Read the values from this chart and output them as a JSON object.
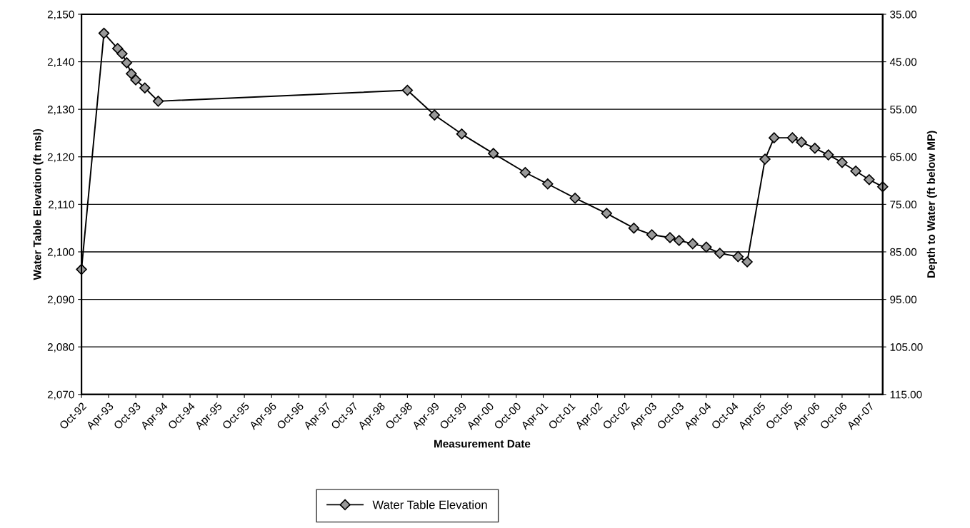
{
  "chart_data": {
    "type": "line",
    "xlabel": "Measurement Date",
    "ylabel": "Water Table Elevation (ft msl)",
    "y2label": "Depth to Water (ft below MP)",
    "x": [
      "1992-10",
      "1993-03",
      "1993-06",
      "1993-07",
      "1993-08",
      "1993-09",
      "1993-10",
      "1993-12",
      "1994-03",
      "1998-10",
      "1999-04",
      "1999-10",
      "2000-05",
      "2000-12",
      "2001-05",
      "2001-11",
      "2002-06",
      "2002-12",
      "2003-04",
      "2003-08",
      "2003-10",
      "2004-01",
      "2004-04",
      "2004-07",
      "2004-11",
      "2005-01",
      "2005-05",
      "2005-07",
      "2005-11",
      "2006-01",
      "2006-04",
      "2006-07",
      "2006-10",
      "2007-01",
      "2007-04",
      "2007-07"
    ],
    "series": [
      {
        "name": "Water Table Elevation",
        "color": "#000000",
        "values": [
          2096.3,
          2146.0,
          2142.8,
          2141.7,
          2139.8,
          2137.5,
          2136.2,
          2134.5,
          2131.7,
          2134.0,
          2128.8,
          2124.8,
          2120.7,
          2116.7,
          2114.3,
          2111.3,
          2108.1,
          2105.0,
          2103.6,
          2103.0,
          2102.4,
          2101.7,
          2101.0,
          2099.7,
          2099.0,
          2097.9,
          2119.5,
          2124.0,
          2124.0,
          2123.1,
          2121.8,
          2120.4,
          2118.8,
          2117.0,
          2115.2,
          2113.7
        ]
      }
    ],
    "marker": "diamond",
    "line_style": "solid",
    "grid": "y",
    "legend": "bottom",
    "xlim": [
      "1992-10",
      "2007-07"
    ],
    "xticks": [
      {
        "value": "1992-10",
        "label": "Oct-92"
      },
      {
        "value": "1993-04",
        "label": "Apr-93"
      },
      {
        "value": "1993-10",
        "label": "Oct-93"
      },
      {
        "value": "1994-04",
        "label": "Apr-94"
      },
      {
        "value": "1994-10",
        "label": "Oct-94"
      },
      {
        "value": "1995-04",
        "label": "Apr-95"
      },
      {
        "value": "1995-10",
        "label": "Oct-95"
      },
      {
        "value": "1996-04",
        "label": "Apr-96"
      },
      {
        "value": "1996-10",
        "label": "Oct-96"
      },
      {
        "value": "1997-04",
        "label": "Apr-97"
      },
      {
        "value": "1997-10",
        "label": "Oct-97"
      },
      {
        "value": "1998-04",
        "label": "Apr-98"
      },
      {
        "value": "1998-10",
        "label": "Oct-98"
      },
      {
        "value": "1999-04",
        "label": "Apr-99"
      },
      {
        "value": "1999-10",
        "label": "Oct-99"
      },
      {
        "value": "2000-04",
        "label": "Apr-00"
      },
      {
        "value": "2000-10",
        "label": "Oct-00"
      },
      {
        "value": "2001-04",
        "label": "Apr-01"
      },
      {
        "value": "2001-10",
        "label": "Oct-01"
      },
      {
        "value": "2002-04",
        "label": "Apr-02"
      },
      {
        "value": "2002-10",
        "label": "Oct-02"
      },
      {
        "value": "2003-04",
        "label": "Apr-03"
      },
      {
        "value": "2003-10",
        "label": "Oct-03"
      },
      {
        "value": "2004-04",
        "label": "Apr-04"
      },
      {
        "value": "2004-10",
        "label": "Oct-04"
      },
      {
        "value": "2005-04",
        "label": "Apr-05"
      },
      {
        "value": "2005-10",
        "label": "Oct-05"
      },
      {
        "value": "2006-04",
        "label": "Apr-06"
      },
      {
        "value": "2006-10",
        "label": "Oct-06"
      },
      {
        "value": "2007-04",
        "label": "Apr-07"
      }
    ],
    "ylim": [
      2070,
      2150
    ],
    "yticks": [
      {
        "value": 2070,
        "label": "2,070"
      },
      {
        "value": 2080,
        "label": "2,080"
      },
      {
        "value": 2090,
        "label": "2,090"
      },
      {
        "value": 2100,
        "label": "2,100"
      },
      {
        "value": 2110,
        "label": "2,110"
      },
      {
        "value": 2120,
        "label": "2,120"
      },
      {
        "value": 2130,
        "label": "2,130"
      },
      {
        "value": 2140,
        "label": "2,140"
      },
      {
        "value": 2150,
        "label": "2,150"
      }
    ],
    "y2lim": [
      115,
      35
    ],
    "y2ticks": [
      {
        "value": 115,
        "label": "115.00"
      },
      {
        "value": 105,
        "label": "105.00"
      },
      {
        "value": 95,
        "label": "95.00"
      },
      {
        "value": 85,
        "label": "85.00"
      },
      {
        "value": 75,
        "label": "75.00"
      },
      {
        "value": 65,
        "label": "65.00"
      },
      {
        "value": 55,
        "label": "55.00"
      },
      {
        "value": 45,
        "label": "45.00"
      },
      {
        "value": 35,
        "label": "35.00"
      }
    ]
  }
}
